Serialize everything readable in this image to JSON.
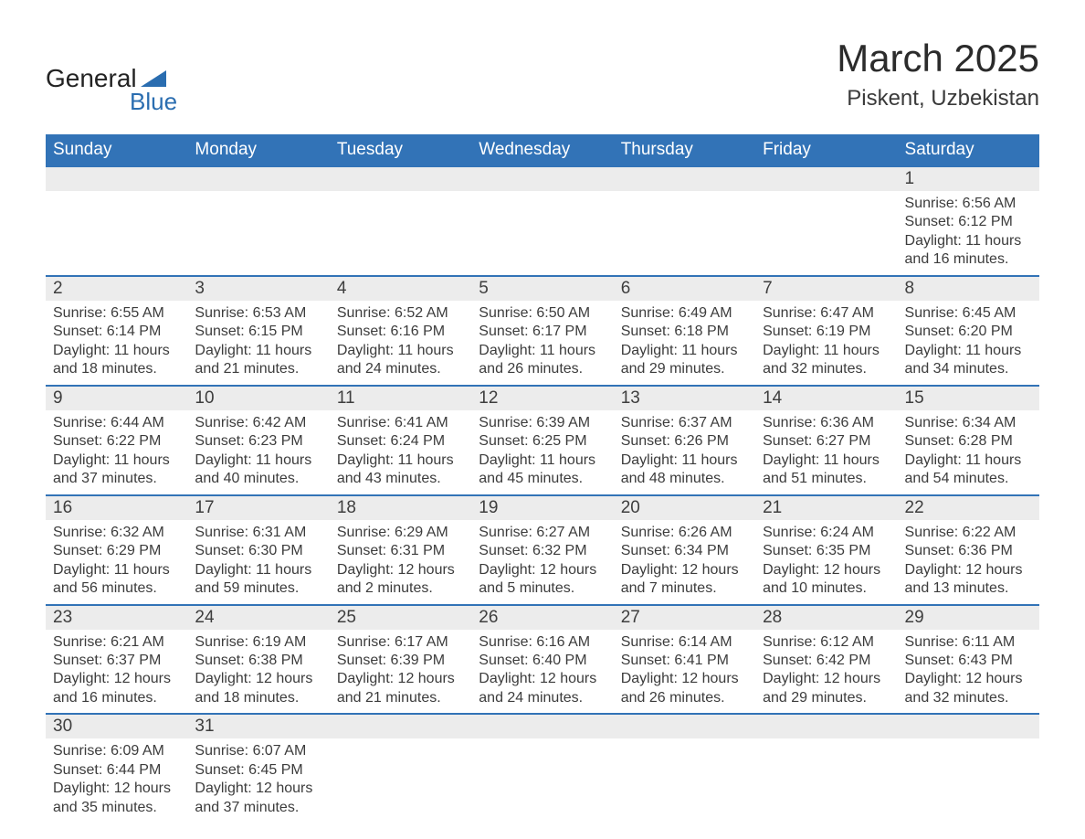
{
  "logo": {
    "word1": "General",
    "word2": "Blue"
  },
  "title": "March 2025",
  "location": "Piskent, Uzbekistan",
  "colors": {
    "header_bg": "#3273b7",
    "header_text": "#ffffff",
    "daynum_bg": "#ececec",
    "border": "#3273b7",
    "text": "#3a3a3a",
    "logo_accent": "#2a6db0"
  },
  "typography": {
    "title_fontsize": 42,
    "location_fontsize": 24,
    "header_fontsize": 19,
    "daynum_fontsize": 19,
    "body_fontsize": 16
  },
  "weekdays": [
    "Sunday",
    "Monday",
    "Tuesday",
    "Wednesday",
    "Thursday",
    "Friday",
    "Saturday"
  ],
  "weeks": [
    [
      null,
      null,
      null,
      null,
      null,
      null,
      {
        "n": "1",
        "sunrise": "6:56 AM",
        "sunset": "6:12 PM",
        "daylight": "11 hours and 16 minutes."
      }
    ],
    [
      {
        "n": "2",
        "sunrise": "6:55 AM",
        "sunset": "6:14 PM",
        "daylight": "11 hours and 18 minutes."
      },
      {
        "n": "3",
        "sunrise": "6:53 AM",
        "sunset": "6:15 PM",
        "daylight": "11 hours and 21 minutes."
      },
      {
        "n": "4",
        "sunrise": "6:52 AM",
        "sunset": "6:16 PM",
        "daylight": "11 hours and 24 minutes."
      },
      {
        "n": "5",
        "sunrise": "6:50 AM",
        "sunset": "6:17 PM",
        "daylight": "11 hours and 26 minutes."
      },
      {
        "n": "6",
        "sunrise": "6:49 AM",
        "sunset": "6:18 PM",
        "daylight": "11 hours and 29 minutes."
      },
      {
        "n": "7",
        "sunrise": "6:47 AM",
        "sunset": "6:19 PM",
        "daylight": "11 hours and 32 minutes."
      },
      {
        "n": "8",
        "sunrise": "6:45 AM",
        "sunset": "6:20 PM",
        "daylight": "11 hours and 34 minutes."
      }
    ],
    [
      {
        "n": "9",
        "sunrise": "6:44 AM",
        "sunset": "6:22 PM",
        "daylight": "11 hours and 37 minutes."
      },
      {
        "n": "10",
        "sunrise": "6:42 AM",
        "sunset": "6:23 PM",
        "daylight": "11 hours and 40 minutes."
      },
      {
        "n": "11",
        "sunrise": "6:41 AM",
        "sunset": "6:24 PM",
        "daylight": "11 hours and 43 minutes."
      },
      {
        "n": "12",
        "sunrise": "6:39 AM",
        "sunset": "6:25 PM",
        "daylight": "11 hours and 45 minutes."
      },
      {
        "n": "13",
        "sunrise": "6:37 AM",
        "sunset": "6:26 PM",
        "daylight": "11 hours and 48 minutes."
      },
      {
        "n": "14",
        "sunrise": "6:36 AM",
        "sunset": "6:27 PM",
        "daylight": "11 hours and 51 minutes."
      },
      {
        "n": "15",
        "sunrise": "6:34 AM",
        "sunset": "6:28 PM",
        "daylight": "11 hours and 54 minutes."
      }
    ],
    [
      {
        "n": "16",
        "sunrise": "6:32 AM",
        "sunset": "6:29 PM",
        "daylight": "11 hours and 56 minutes."
      },
      {
        "n": "17",
        "sunrise": "6:31 AM",
        "sunset": "6:30 PM",
        "daylight": "11 hours and 59 minutes."
      },
      {
        "n": "18",
        "sunrise": "6:29 AM",
        "sunset": "6:31 PM",
        "daylight": "12 hours and 2 minutes."
      },
      {
        "n": "19",
        "sunrise": "6:27 AM",
        "sunset": "6:32 PM",
        "daylight": "12 hours and 5 minutes."
      },
      {
        "n": "20",
        "sunrise": "6:26 AM",
        "sunset": "6:34 PM",
        "daylight": "12 hours and 7 minutes."
      },
      {
        "n": "21",
        "sunrise": "6:24 AM",
        "sunset": "6:35 PM",
        "daylight": "12 hours and 10 minutes."
      },
      {
        "n": "22",
        "sunrise": "6:22 AM",
        "sunset": "6:36 PM",
        "daylight": "12 hours and 13 minutes."
      }
    ],
    [
      {
        "n": "23",
        "sunrise": "6:21 AM",
        "sunset": "6:37 PM",
        "daylight": "12 hours and 16 minutes."
      },
      {
        "n": "24",
        "sunrise": "6:19 AM",
        "sunset": "6:38 PM",
        "daylight": "12 hours and 18 minutes."
      },
      {
        "n": "25",
        "sunrise": "6:17 AM",
        "sunset": "6:39 PM",
        "daylight": "12 hours and 21 minutes."
      },
      {
        "n": "26",
        "sunrise": "6:16 AM",
        "sunset": "6:40 PM",
        "daylight": "12 hours and 24 minutes."
      },
      {
        "n": "27",
        "sunrise": "6:14 AM",
        "sunset": "6:41 PM",
        "daylight": "12 hours and 26 minutes."
      },
      {
        "n": "28",
        "sunrise": "6:12 AM",
        "sunset": "6:42 PM",
        "daylight": "12 hours and 29 minutes."
      },
      {
        "n": "29",
        "sunrise": "6:11 AM",
        "sunset": "6:43 PM",
        "daylight": "12 hours and 32 minutes."
      }
    ],
    [
      {
        "n": "30",
        "sunrise": "6:09 AM",
        "sunset": "6:44 PM",
        "daylight": "12 hours and 35 minutes."
      },
      {
        "n": "31",
        "sunrise": "6:07 AM",
        "sunset": "6:45 PM",
        "daylight": "12 hours and 37 minutes."
      },
      null,
      null,
      null,
      null,
      null
    ]
  ],
  "labels": {
    "sunrise_prefix": "Sunrise: ",
    "sunset_prefix": "Sunset: ",
    "daylight_prefix": "Daylight: "
  }
}
